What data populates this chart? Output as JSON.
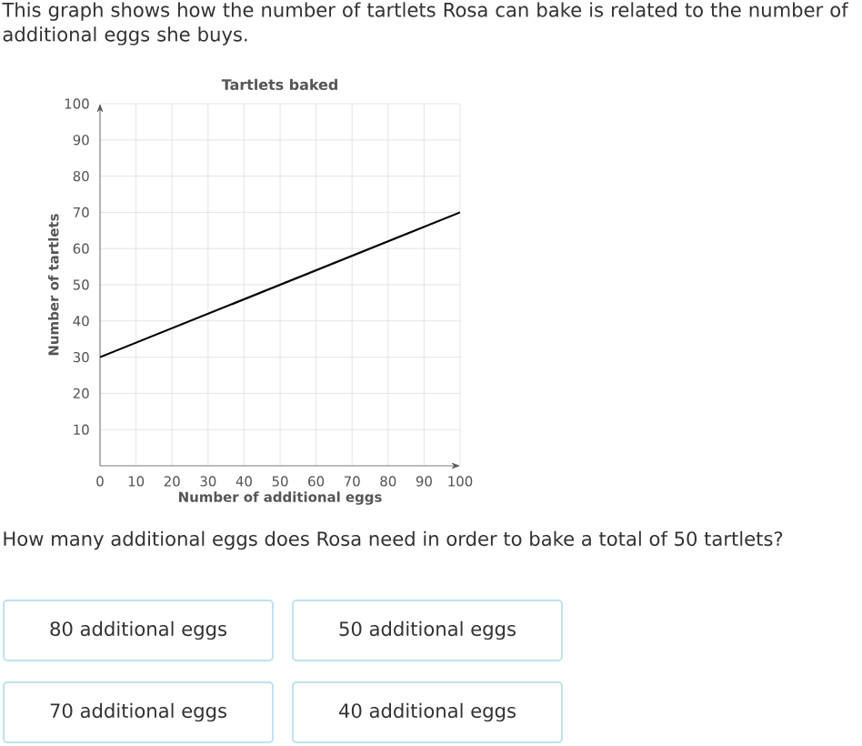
{
  "chart_data": {
    "type": "line",
    "title": "Tartlets baked",
    "xlabel": "Number of additional eggs",
    "ylabel": "Number of tartlets",
    "x": [
      0,
      100
    ],
    "series": [
      {
        "color": "#000000",
        "values": [
          30,
          70
        ]
      }
    ],
    "xlim": [
      0,
      100
    ],
    "ylim": [
      0,
      100
    ],
    "xticks": [
      0,
      10,
      20,
      30,
      40,
      50,
      60,
      70,
      80,
      90,
      100
    ],
    "yticks": [
      10,
      20,
      30,
      40,
      50,
      60,
      70,
      80,
      90,
      100
    ],
    "grid": true,
    "marker": "none",
    "line_style": "solid",
    "annotations": [
      "This graph shows how the number of tartlets Rosa can bake is related to the number of additional eggs she buys.",
      "How many additional eggs does Rosa need in order to bake a total of 50 tartlets?",
      "80 additional eggs",
      "50 additional eggs",
      "70 additional eggs",
      "40 additional eggs"
    ]
  }
}
